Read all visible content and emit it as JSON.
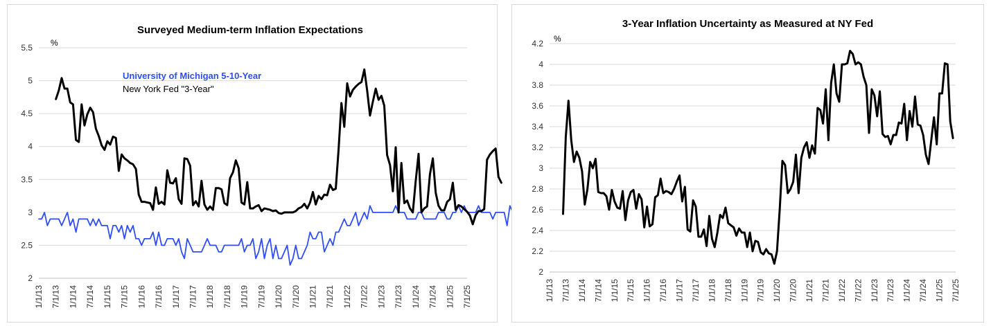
{
  "colors": {
    "michigan": "#2f4ef5",
    "nyfed": "#000000",
    "grid": "#d9d9d9"
  },
  "x_labels": [
    "1/1/13",
    "7/1/13",
    "1/1/14",
    "7/1/14",
    "1/1/15",
    "7/1/15",
    "1/1/16",
    "7/1/16",
    "1/1/17",
    "7/1/17",
    "1/1/18",
    "7/1/18",
    "1/1/19",
    "7/1/19",
    "1/1/20",
    "7/1/20",
    "1/1/21",
    "7/1/21",
    "1/1/22",
    "7/1/22",
    "1/1/23",
    "7/1/23",
    "1/1/24",
    "7/1/24",
    "1/1/25",
    "7/1/25"
  ],
  "chart_data": [
    {
      "type": "line",
      "title": "Surveyed Medium-term Inflation Expectations",
      "ylabel": "%",
      "ylim": [
        2,
        5.5
      ],
      "yticks": [
        "2",
        "2.5",
        "3",
        "3.5",
        "4",
        "4.5",
        "5",
        "5.5"
      ],
      "yticks_values": [
        2,
        2.5,
        3,
        3.5,
        4,
        4.5,
        5,
        5.5
      ],
      "grid": true,
      "legend": "upper-left, inside plot",
      "x_range": [
        "1/1/13",
        "7/1/25"
      ],
      "series": [
        {
          "name": "University of Michigan 5-10-Year",
          "color": "#2f4ef5",
          "x_start": "1/1/13",
          "step": "monthly",
          "values": [
            2.9,
            2.9,
            3.0,
            2.8,
            2.9,
            2.9,
            2.9,
            2.9,
            2.8,
            2.9,
            3.0,
            2.8,
            2.9,
            2.7,
            2.9,
            2.9,
            2.9,
            2.9,
            2.8,
            2.9,
            2.8,
            2.9,
            2.8,
            2.8,
            2.8,
            2.6,
            2.8,
            2.8,
            2.7,
            2.8,
            2.6,
            2.8,
            2.7,
            2.8,
            2.6,
            2.6,
            2.5,
            2.6,
            2.6,
            2.6,
            2.7,
            2.5,
            2.7,
            2.5,
            2.5,
            2.6,
            2.6,
            2.6,
            2.5,
            2.6,
            2.4,
            2.3,
            2.6,
            2.5,
            2.4,
            2.4,
            2.4,
            2.4,
            2.5,
            2.6,
            2.5,
            2.5,
            2.5,
            2.4,
            2.4,
            2.5,
            2.5,
            2.5,
            2.5,
            2.5,
            2.5,
            2.6,
            2.4,
            2.5,
            2.5,
            2.6,
            2.3,
            2.4,
            2.6,
            2.3,
            2.5,
            2.6,
            2.3,
            2.5,
            2.3,
            2.3,
            2.4,
            2.5,
            2.2,
            2.3,
            2.5,
            2.3,
            2.3,
            2.4,
            2.5,
            2.7,
            2.6,
            2.6,
            2.7,
            2.7,
            2.4,
            2.5,
            2.6,
            2.5,
            2.7,
            2.7,
            2.8,
            2.9,
            2.8,
            2.8,
            2.9,
            3.0,
            2.8,
            2.9,
            3.0,
            2.9,
            3.1,
            3.0,
            3.0,
            3.0,
            3.0,
            3.0,
            3.0,
            3.0,
            3.0,
            3.1,
            3.0,
            3.0,
            3.0,
            2.9,
            2.9,
            2.9,
            2.9,
            3.0,
            3.0,
            2.9,
            2.9,
            2.9,
            2.9,
            2.9,
            3.0,
            3.0,
            3.0,
            2.9,
            2.9,
            3.0,
            3.0,
            3.1,
            3.0,
            3.1,
            3.0,
            3.0,
            3.0,
            3.0,
            3.1,
            3.0,
            3.0,
            3.0,
            3.0,
            2.9,
            3.0,
            3.0,
            3.0,
            3.0,
            2.8,
            3.1,
            3.0,
            2.9,
            3.0,
            3.1,
            3.1,
            3.1,
            3.1,
            3.0,
            3.0,
            3.0,
            3.0,
            3.0,
            3.0,
            3.0,
            3.0,
            3.0,
            3.0,
            3.0,
            3.1,
            3.0,
            3.0,
            3.0,
            3.0,
            3.0,
            3.0,
            3.0,
            3.0,
            3.0,
            3.0,
            3.0,
            3.0,
            3.0,
            3.0,
            3.0,
            3.0,
            3.0,
            3.0,
            3.0,
            3.0,
            3.0,
            3.0,
            3.0
          ]
        },
        {
          "name": "New York Fed \"3-Year\"",
          "color": "#000000",
          "x_start": "7/1/13",
          "step": "monthly",
          "values": [
            4.72,
            4.85,
            5.04,
            4.88,
            4.88,
            4.67,
            4.64,
            4.1,
            4.07,
            4.64,
            4.32,
            4.49,
            4.59,
            4.52,
            4.27,
            4.16,
            4.02,
            3.95,
            4.08,
            4.03,
            4.15,
            4.13,
            3.63,
            3.88,
            3.82,
            3.79,
            3.75,
            3.73,
            3.66,
            3.27,
            3.16,
            3.16,
            3.15,
            3.14,
            3.04,
            3.38,
            3.13,
            3.16,
            3.12,
            3.64,
            3.45,
            3.44,
            3.52,
            3.2,
            3.13,
            3.82,
            3.81,
            3.71,
            3.11,
            3.17,
            3.09,
            3.48,
            3.12,
            3.04,
            3.09,
            3.04,
            3.37,
            3.37,
            3.35,
            3.14,
            3.11,
            3.52,
            3.61,
            3.79,
            3.67,
            3.15,
            3.12,
            3.46,
            3.06,
            3.06,
            3.09,
            3.11,
            3.02,
            3.06,
            3.05,
            3.04,
            3.02,
            3.03,
            2.99,
            2.98,
            3.0,
            3.0,
            3.0,
            3.0,
            3.02,
            3.06,
            3.08,
            3.13,
            3.06,
            3.15,
            3.31,
            3.12,
            3.25,
            3.2,
            3.27,
            3.26,
            3.42,
            3.34,
            3.36,
            3.96,
            4.66,
            4.3,
            4.96,
            4.76,
            4.86,
            4.91,
            4.95,
            4.98,
            5.17,
            4.85,
            4.47,
            4.68,
            4.88,
            4.71,
            4.77,
            4.62,
            3.87,
            3.72,
            3.32,
            3.99,
            3.0,
            3.75,
            3.14,
            3.18,
            3.06,
            3.0,
            3.47,
            3.89,
            3.0,
            3.06,
            3.09,
            3.58,
            3.82,
            3.3,
            3.1,
            3.03,
            3.03,
            3.16,
            3.2,
            3.45,
            3.04,
            3.11,
            3.09,
            3.05,
            3.01,
            2.95,
            2.82,
            2.96,
            3.02,
            3.02,
            3.05,
            3.8,
            3.88,
            3.93,
            3.97,
            3.54,
            3.45
          ]
        }
      ]
    },
    {
      "type": "line",
      "title": "3-Year Inflation Uncertainty as Measured at NY Fed",
      "ylabel": "%",
      "ylim": [
        2,
        4.2
      ],
      "yticks": [
        "2",
        "2.2",
        "2.4",
        "2.6",
        "2.8",
        "3",
        "3.2",
        "3.4",
        "3.6",
        "3.8",
        "4",
        "4.2"
      ],
      "yticks_values": [
        2,
        2.2,
        2.4,
        2.6,
        2.8,
        3,
        3.2,
        3.4,
        3.6,
        3.8,
        4,
        4.2
      ],
      "grid": true,
      "x_range": [
        "1/1/13",
        "7/1/25"
      ],
      "series": [
        {
          "color": "#000000",
          "x_start": "6/1/13",
          "step": "monthly",
          "values": [
            2.56,
            3.3,
            3.65,
            3.27,
            3.06,
            3.16,
            3.1,
            2.97,
            2.65,
            2.8,
            3.06,
            3.0,
            3.09,
            2.77,
            2.76,
            2.76,
            2.73,
            2.6,
            2.79,
            2.68,
            2.62,
            2.61,
            2.78,
            2.5,
            2.69,
            2.77,
            2.79,
            2.61,
            2.75,
            2.7,
            2.43,
            2.63,
            2.44,
            2.46,
            2.72,
            2.74,
            2.9,
            2.76,
            2.78,
            2.77,
            2.75,
            2.8,
            2.87,
            2.93,
            2.68,
            2.82,
            2.41,
            2.39,
            2.69,
            2.63,
            2.34,
            2.34,
            2.41,
            2.25,
            2.54,
            2.32,
            2.24,
            2.38,
            2.55,
            2.52,
            2.62,
            2.47,
            2.45,
            2.43,
            2.35,
            2.42,
            2.38,
            2.38,
            2.24,
            2.38,
            2.2,
            2.3,
            2.29,
            2.19,
            2.17,
            2.22,
            2.18,
            2.17,
            2.08,
            2.2,
            2.6,
            3.07,
            3.03,
            2.76,
            2.8,
            2.87,
            3.13,
            2.76,
            3.1,
            3.2,
            3.25,
            3.1,
            3.22,
            3.14,
            3.58,
            3.56,
            3.43,
            3.76,
            3.27,
            3.82,
            4.0,
            3.72,
            3.64,
            4.0,
            4.0,
            4.01,
            4.13,
            4.1,
            4.0,
            4.02,
            4.0,
            3.88,
            3.8,
            3.34,
            3.76,
            3.7,
            3.5,
            3.74,
            3.33,
            3.3,
            3.31,
            3.23,
            3.32,
            3.32,
            3.44,
            3.43,
            3.62,
            3.27,
            3.55,
            3.4,
            3.69,
            3.42,
            3.41,
            3.32,
            3.13,
            3.04,
            3.27,
            3.49,
            3.23,
            3.72,
            3.72,
            4.01,
            4.0,
            3.45,
            3.29
          ]
        }
      ]
    }
  ]
}
